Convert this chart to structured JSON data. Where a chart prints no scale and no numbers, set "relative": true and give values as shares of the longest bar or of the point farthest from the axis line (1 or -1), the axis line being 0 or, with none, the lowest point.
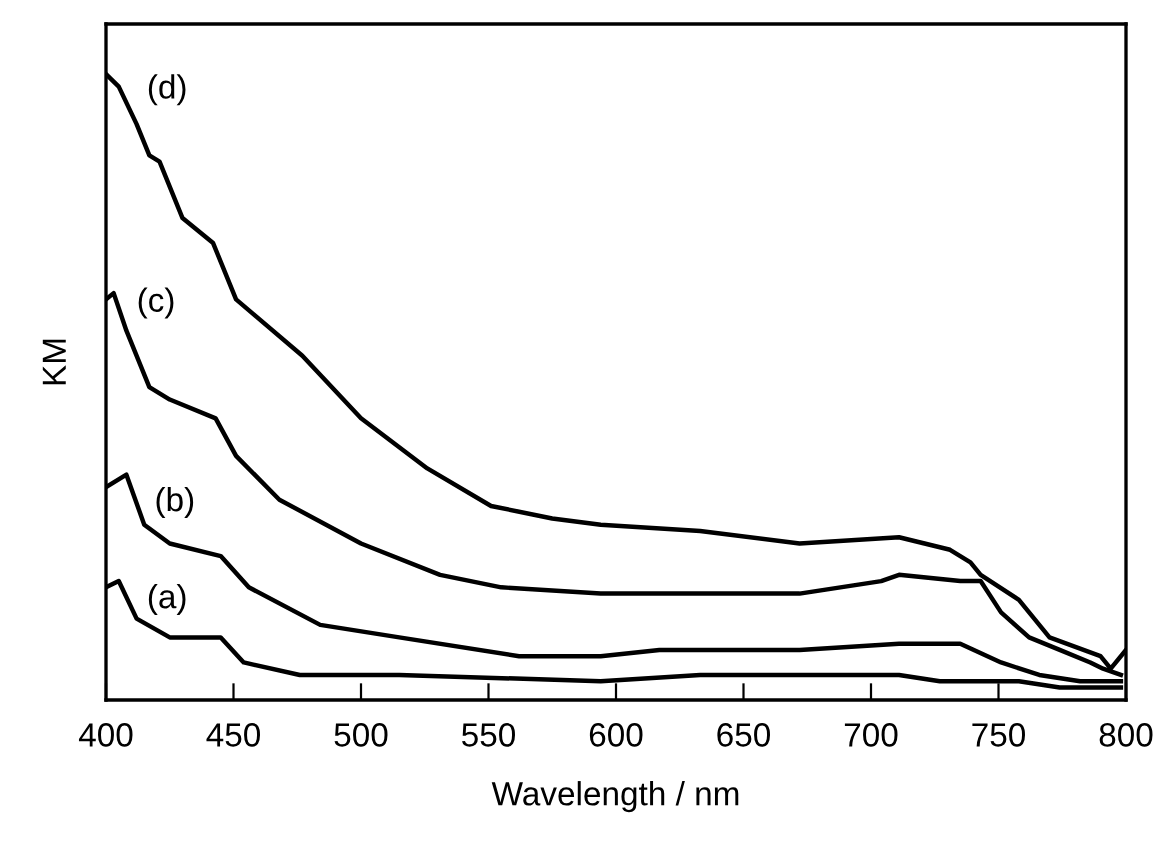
{
  "chart_data": {
    "type": "line",
    "relative": true,
    "xlabel": "Wavelength / nm",
    "ylabel": "KM",
    "xlim": [
      400,
      800
    ],
    "xticks": [
      400,
      450,
      500,
      550,
      600,
      650,
      700,
      750,
      800
    ],
    "tick_labels": "x",
    "grid": false,
    "legend": false,
    "marker": "none",
    "line_style": "solid",
    "series": [
      {
        "name": "(a)",
        "color": "#000000",
        "x": [
          400,
          405,
          412,
          425,
          445,
          454,
          476,
          515,
          594,
          633,
          711,
          727,
          758,
          774,
          798
        ],
        "values": [
          0.18,
          0.19,
          0.13,
          0.1,
          0.1,
          0.06,
          0.04,
          0.04,
          0.03,
          0.04,
          0.04,
          0.03,
          0.03,
          0.02,
          0.02
        ]
      },
      {
        "name": "(b)",
        "color": "#000000",
        "x": [
          400,
          408,
          415,
          425,
          445,
          456,
          484,
          515,
          562,
          594,
          617,
          672,
          711,
          735,
          751,
          766,
          782,
          798
        ],
        "values": [
          0.34,
          0.36,
          0.28,
          0.25,
          0.23,
          0.18,
          0.12,
          0.1,
          0.07,
          0.07,
          0.08,
          0.08,
          0.09,
          0.09,
          0.06,
          0.04,
          0.03,
          0.03
        ]
      },
      {
        "name": "(c)",
        "color": "#000000",
        "x": [
          400,
          403,
          408,
          417,
          425,
          443,
          451,
          468,
          500,
          531,
          555,
          594,
          633,
          672,
          704,
          711,
          735,
          743,
          751,
          762,
          774,
          786,
          791,
          798
        ],
        "values": [
          0.64,
          0.65,
          0.59,
          0.5,
          0.48,
          0.45,
          0.39,
          0.32,
          0.25,
          0.2,
          0.18,
          0.17,
          0.17,
          0.17,
          0.19,
          0.2,
          0.19,
          0.19,
          0.14,
          0.1,
          0.08,
          0.06,
          0.05,
          0.04
        ]
      },
      {
        "name": "(d)",
        "color": "#000000",
        "x": [
          400,
          405,
          412,
          417,
          421,
          430,
          442,
          451,
          477,
          500,
          526,
          551,
          575,
          594,
          633,
          672,
          711,
          731,
          739,
          743,
          758,
          770,
          790,
          794,
          800
        ],
        "values": [
          1.0,
          0.98,
          0.92,
          0.87,
          0.86,
          0.77,
          0.73,
          0.64,
          0.55,
          0.45,
          0.37,
          0.31,
          0.29,
          0.28,
          0.27,
          0.25,
          0.26,
          0.24,
          0.22,
          0.2,
          0.16,
          0.1,
          0.07,
          0.05,
          0.08
        ]
      }
    ]
  }
}
